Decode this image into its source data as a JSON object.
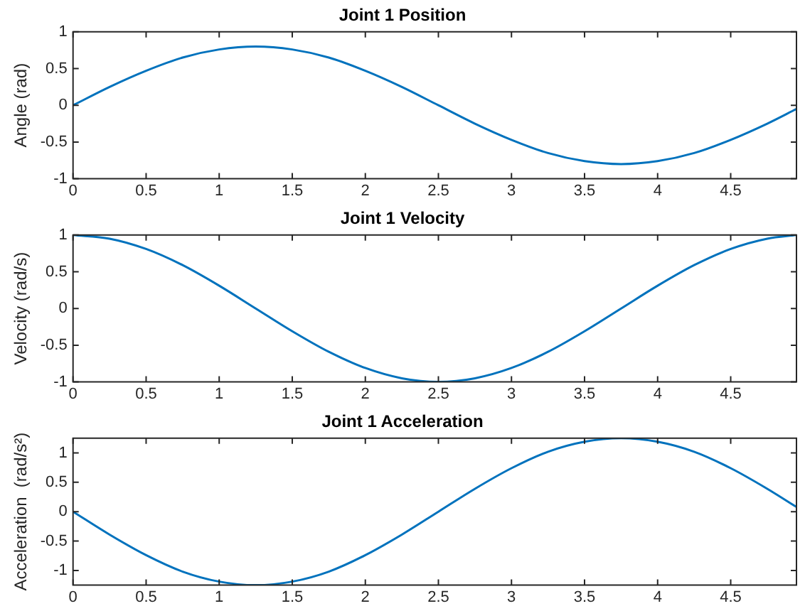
{
  "chart_data": [
    {
      "type": "line",
      "title": "Joint 1 Position",
      "ylabel": "Angle (rad)",
      "xlim": [
        0,
        4.95
      ],
      "xticks": [
        0,
        0.5,
        1,
        1.5,
        2,
        2.5,
        3,
        3.5,
        4,
        4.5
      ],
      "ylim": [
        -1,
        1
      ],
      "yticks": [
        -1,
        -0.5,
        0,
        0.5,
        1
      ],
      "marker": "none",
      "x": [
        0,
        0.25,
        0.5,
        0.75,
        1,
        1.25,
        1.5,
        1.75,
        2,
        2.25,
        2.5,
        2.75,
        3,
        3.25,
        3.5,
        3.75,
        4,
        4.25,
        4.5,
        4.75,
        4.95
      ],
      "series": [
        {
          "color": "#0072bd",
          "values": [
            0,
            0.25,
            0.47,
            0.65,
            0.76,
            0.8,
            0.76,
            0.65,
            0.47,
            0.25,
            0,
            -0.25,
            -0.47,
            -0.65,
            -0.76,
            -0.8,
            -0.76,
            -0.65,
            -0.47,
            -0.25,
            -0.05
          ]
        }
      ]
    },
    {
      "type": "line",
      "title": "Joint 1 Velocity",
      "ylabel": "Velocity (rad/s)",
      "xlim": [
        0,
        4.95
      ],
      "xticks": [
        0,
        0.5,
        1,
        1.5,
        2,
        2.5,
        3,
        3.5,
        4,
        4.5
      ],
      "ylim": [
        -1,
        1
      ],
      "yticks": [
        -1,
        -0.5,
        0,
        0.5,
        1
      ],
      "marker": "none",
      "x": [
        0,
        0.25,
        0.5,
        0.75,
        1,
        1.25,
        1.5,
        1.75,
        2,
        2.25,
        2.5,
        2.75,
        3,
        3.25,
        3.5,
        3.75,
        4,
        4.25,
        4.5,
        4.75,
        4.95
      ],
      "series": [
        {
          "color": "#0072bd",
          "values": [
            1,
            0.95,
            0.81,
            0.59,
            0.31,
            0,
            -0.31,
            -0.59,
            -0.81,
            -0.95,
            -1,
            -0.95,
            -0.81,
            -0.59,
            -0.31,
            0,
            0.31,
            0.59,
            0.81,
            0.95,
            1
          ]
        }
      ]
    },
    {
      "type": "line",
      "title": "Joint 1 Acceleration",
      "ylabel": "Acceleration  (rad/s²)",
      "xlim": [
        0,
        4.95
      ],
      "xticks": [
        0,
        0.5,
        1,
        1.5,
        2,
        2.5,
        3,
        3.5,
        4,
        4.5
      ],
      "ylim": [
        -1.25,
        1.25
      ],
      "yticks": [
        -1,
        -0.5,
        0,
        0.5,
        1
      ],
      "marker": "none",
      "x": [
        0,
        0.25,
        0.5,
        0.75,
        1,
        1.25,
        1.5,
        1.75,
        2,
        2.25,
        2.5,
        2.75,
        3,
        3.25,
        3.5,
        3.75,
        4,
        4.25,
        4.5,
        4.75,
        4.95
      ],
      "series": [
        {
          "color": "#0072bd",
          "values": [
            0,
            -0.39,
            -0.74,
            -1.02,
            -1.19,
            -1.25,
            -1.19,
            -1.02,
            -0.74,
            -0.39,
            0,
            0.39,
            0.74,
            1.02,
            1.19,
            1.25,
            1.19,
            1.02,
            0.74,
            0.39,
            0.08
          ]
        }
      ]
    }
  ]
}
